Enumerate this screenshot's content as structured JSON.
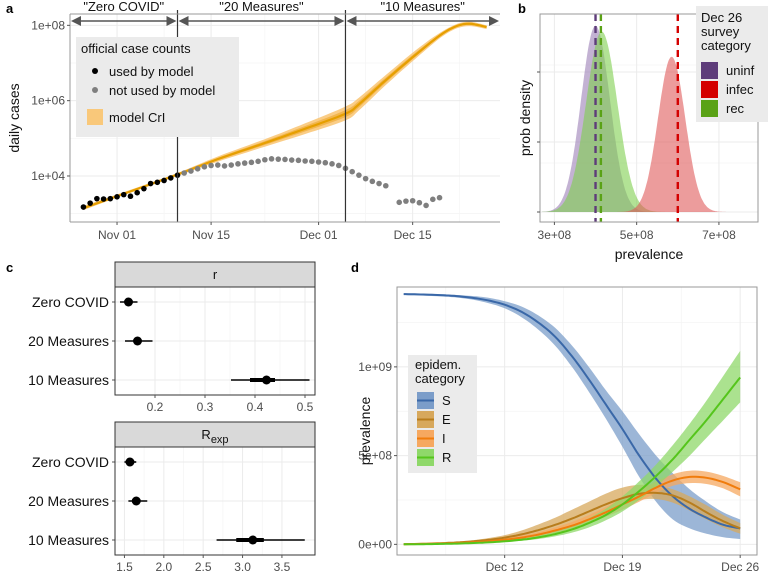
{
  "panels": {
    "a": {
      "label": "a"
    },
    "b": {
      "label": "b"
    },
    "c": {
      "label": "c"
    },
    "d": {
      "label": "d"
    }
  },
  "chart_data": [
    {
      "id": "a",
      "type": "line",
      "title": "",
      "xlabel": "",
      "ylabel": "daily cases",
      "yscale": "log10",
      "ylim": [
        600,
        200000000
      ],
      "ytick_labels": [
        "1e+04",
        "1e+06",
        "1e+08"
      ],
      "ytick_values": [
        10000,
        1000000,
        100000000
      ],
      "xtick_labels": [
        "Nov 01",
        "Nov 15",
        "Dec 01",
        "Dec 15"
      ],
      "xtick_days": [
        5,
        19,
        35,
        49
      ],
      "x_unit": "days since Oct 27",
      "xlim_days": [
        -2,
        62
      ],
      "phases": [
        {
          "label": "\"Zero COVID\"",
          "start_day": -2,
          "end_day": 14
        },
        {
          "label": "\"20 Measures\"",
          "start_day": 14,
          "end_day": 39
        },
        {
          "label": "\"10 Measures\"",
          "start_day": 39,
          "end_day": 62
        }
      ],
      "phase_boundaries_days": [
        14,
        39
      ],
      "legend": {
        "title": "official case counts",
        "items": [
          {
            "label": "used by model",
            "color": "#000000"
          },
          {
            "label": "not used by model",
            "color": "#7f7f7f"
          },
          {
            "label": "model CrI",
            "color": "#f9c87a"
          }
        ],
        "position": "top-left"
      },
      "series": [
        {
          "name": "used by model",
          "color": "#000000",
          "x": [
            0,
            1,
            2,
            3,
            4,
            5,
            6,
            7,
            8,
            9,
            10,
            11,
            12,
            13,
            14
          ],
          "y": [
            1500,
            1900,
            2500,
            2450,
            2500,
            2800,
            3200,
            2900,
            3600,
            4600,
            6300,
            6800,
            7600,
            8900,
            10500
          ]
        },
        {
          "name": "not used by model",
          "color": "#7f7f7f",
          "x": [
            15,
            16,
            17,
            18,
            19,
            20,
            21,
            22,
            23,
            24,
            25,
            26,
            27,
            28,
            29,
            30,
            31,
            32,
            33,
            34,
            35,
            36,
            37,
            38,
            39,
            40,
            41,
            42,
            43,
            44,
            45,
            47,
            48,
            49,
            50,
            51,
            52,
            53
          ],
          "y": [
            12000,
            13500,
            15500,
            17500,
            19000,
            19500,
            18500,
            19500,
            21000,
            22000,
            23000,
            24500,
            27000,
            28500,
            28000,
            27500,
            26500,
            26000,
            25000,
            24500,
            23500,
            22500,
            21000,
            19000,
            16000,
            13000,
            10500,
            8500,
            7200,
            6300,
            5500,
            2000,
            2150,
            2200,
            1950,
            1650,
            2400,
            2650
          ]
        },
        {
          "name": "model median",
          "color": "#e69f00",
          "x": [
            0,
            7,
            14,
            20,
            27,
            33,
            39,
            41,
            45,
            50,
            54,
            57,
            60
          ],
          "y": [
            1400,
            3900,
            11000,
            28000,
            75000,
            180000,
            450000,
            800000,
            3500000,
            20000000,
            70000000,
            110000000,
            90000000
          ]
        }
      ],
      "band": {
        "name": "model CrI",
        "color": "#f9c87a",
        "x": [
          0,
          7,
          14,
          20,
          27,
          33,
          39,
          41,
          45,
          50,
          54,
          57,
          60
        ],
        "lower": [
          1250,
          3600,
          10000,
          24000,
          60000,
          130000,
          300000,
          550000,
          2600000,
          16000000,
          60000000,
          95000000,
          80000000
        ],
        "upper": [
          1600,
          4300,
          12000,
          33000,
          95000,
          250000,
          700000,
          1200000,
          4800000,
          26000000,
          80000000,
          125000000,
          100000000
        ]
      }
    },
    {
      "id": "b",
      "type": "area",
      "title": "",
      "xlabel": "prevalence",
      "ylabel": "prob density",
      "xlim": [
        265000000.0,
        795000000.0
      ],
      "xtick_labels": [
        "3e+08",
        "5e+08",
        "7e+08"
      ],
      "xtick_values": [
        300000000.0,
        500000000.0,
        700000000.0
      ],
      "legend": {
        "title": "Dec 26\nsurvey\ncategory",
        "items": [
          {
            "label": "uninf",
            "color": "#5e3c7a"
          },
          {
            "label": "infec",
            "color": "#d40000"
          },
          {
            "label": "rec",
            "color": "#5aa216"
          }
        ],
        "position": "top-right"
      },
      "series": [
        {
          "name": "uninf",
          "color": "#9b7fb6",
          "mean": 400000000.0,
          "sd": 35000000.0,
          "peak_rel": 0.96,
          "survey_value": 400000000.0,
          "line_color": "#5e3c7a"
        },
        {
          "name": "rec",
          "color": "#7fcf4f",
          "mean": 415000000.0,
          "sd": 38000000.0,
          "peak_rel": 0.93,
          "survey_value": 413000000.0,
          "line_color": "#5aa216"
        },
        {
          "name": "infec",
          "color": "#e05a5a",
          "mean": 585000000.0,
          "sd": 33000000.0,
          "peak_rel": 0.8,
          "survey_value": 600000000.0,
          "line_color": "#d40000"
        }
      ]
    },
    {
      "id": "c-r",
      "type": "scatter",
      "facet_title": "r",
      "xlim": [
        0.12,
        0.52
      ],
      "xtick_labels": [
        "0.2",
        "0.3",
        "0.4",
        "0.5"
      ],
      "xtick_values": [
        0.2,
        0.3,
        0.4,
        0.5
      ],
      "categories": [
        "Zero COVID",
        "20 Measures",
        "10 Measures"
      ],
      "point": [
        0.147,
        0.165,
        0.423
      ],
      "inner": [
        [
          0.14,
          0.154
        ],
        [
          0.158,
          0.172
        ],
        [
          0.39,
          0.44
        ]
      ],
      "outer": [
        [
          0.13,
          0.165
        ],
        [
          0.14,
          0.195
        ],
        [
          0.352,
          0.509
        ]
      ]
    },
    {
      "id": "c-rexp",
      "type": "scatter",
      "facet_title": "R",
      "facet_title_sub": "exp",
      "xlim": [
        1.38,
        3.92
      ],
      "xtick_labels": [
        "1.5",
        "2.0",
        "2.5",
        "3.0",
        "3.5"
      ],
      "xtick_values": [
        1.5,
        2.0,
        2.5,
        3.0,
        3.5
      ],
      "categories": [
        "Zero COVID",
        "20 Measures",
        "10 Measures"
      ],
      "point": [
        1.57,
        1.65,
        3.13
      ],
      "inner": [
        [
          1.53,
          1.61
        ],
        [
          1.6,
          1.7
        ],
        [
          2.92,
          3.27
        ]
      ],
      "outer": [
        [
          1.5,
          1.65
        ],
        [
          1.55,
          1.79
        ],
        [
          2.67,
          3.79
        ]
      ]
    },
    {
      "id": "d",
      "type": "line",
      "title": "",
      "xlabel": "",
      "ylabel": "prevalence",
      "xtick_labels": [
        "Dec 12",
        "Dec 19",
        "Dec 26"
      ],
      "xtick_days": [
        12,
        19,
        26
      ],
      "xlim_days": [
        5.6,
        27
      ],
      "ylim": [
        -60000000.0,
        1450000000.0
      ],
      "ytick_labels": [
        "0e+00",
        "5e+08",
        "1e+09"
      ],
      "ytick_values": [
        0,
        500000000.0,
        1000000000.0
      ],
      "legend": {
        "title": "epidem.\ncategory",
        "items": [
          {
            "label": "S",
            "color": "#3a68a8",
            "fill": "#7b9dc9"
          },
          {
            "label": "E",
            "color": "#b87d1c",
            "fill": "#d7a85c"
          },
          {
            "label": "I",
            "color": "#f07c0c",
            "fill": "#f6a860"
          },
          {
            "label": "R",
            "color": "#55c51c",
            "fill": "#8fd86a"
          }
        ],
        "position": "left"
      },
      "x_days": [
        6,
        7,
        8,
        9,
        10,
        11,
        12,
        13,
        14,
        15,
        16,
        17,
        18,
        19,
        20,
        21,
        22,
        23,
        24,
        25,
        26
      ],
      "series": [
        {
          "name": "S",
          "color": "#3a68a8",
          "fill": "#7b9dc9",
          "median": [
            1410000000.0,
            1408000000.0,
            1405000000.0,
            1400000000.0,
            1390000000.0,
            1375000000.0,
            1350000000.0,
            1310000000.0,
            1250000000.0,
            1170000000.0,
            1060000000.0,
            930000000.0,
            790000000.0,
            650000000.0,
            500000000.0,
            370000000.0,
            270000000.0,
            200000000.0,
            150000000.0,
            110000000.0,
            90000000.0
          ],
          "lower": [
            1405000000.0,
            1402000000.0,
            1398000000.0,
            1392000000.0,
            1380000000.0,
            1360000000.0,
            1330000000.0,
            1280000000.0,
            1210000000.0,
            1120000000.0,
            1000000000.0,
            860000000.0,
            710000000.0,
            550000000.0,
            380000000.0,
            240000000.0,
            140000000.0,
            90000000.0,
            60000000.0,
            40000000.0,
            30000000.0
          ],
          "upper": [
            1415000000.0,
            1413000000.0,
            1410000000.0,
            1406000000.0,
            1400000000.0,
            1390000000.0,
            1370000000.0,
            1340000000.0,
            1290000000.0,
            1220000000.0,
            1120000000.0,
            1000000000.0,
            870000000.0,
            750000000.0,
            620000000.0,
            500000000.0,
            400000000.0,
            310000000.0,
            240000000.0,
            180000000.0,
            140000000.0
          ]
        },
        {
          "name": "E",
          "color": "#b87d1c",
          "fill": "#d7a85c",
          "median": [
            1000000.0,
            3000000.0,
            6000000.0,
            10000000.0,
            16000000.0,
            25000000.0,
            38000000.0,
            56000000.0,
            80000000.0,
            110000000.0,
            145000000.0,
            185000000.0,
            225000000.0,
            260000000.0,
            285000000.0,
            290000000.0,
            275000000.0,
            235000000.0,
            180000000.0,
            130000000.0,
            90000000.0
          ],
          "lower": [
            500000.0,
            2000000.0,
            4000000.0,
            7000000.0,
            11000000.0,
            17000000.0,
            26000000.0,
            38000000.0,
            55000000.0,
            80000000.0,
            110000000.0,
            145000000.0,
            185000000.0,
            225000000.0,
            250000000.0,
            255000000.0,
            235000000.0,
            190000000.0,
            140000000.0,
            95000000.0,
            60000000.0
          ],
          "upper": [
            2000000.0,
            4000000.0,
            9000000.0,
            14000000.0,
            22000000.0,
            35000000.0,
            52000000.0,
            78000000.0,
            112000000.0,
            150000000.0,
            195000000.0,
            240000000.0,
            285000000.0,
            320000000.0,
            335000000.0,
            330000000.0,
            310000000.0,
            270000000.0,
            220000000.0,
            165000000.0,
            120000000.0
          ]
        },
        {
          "name": "I",
          "color": "#f07c0c",
          "fill": "#f6a860",
          "median": [
            1000000.0,
            2000000.0,
            4000000.0,
            7000000.0,
            11000000.0,
            17000000.0,
            26000000.0,
            38000000.0,
            55000000.0,
            78000000.0,
            105000000.0,
            140000000.0,
            180000000.0,
            225000000.0,
            270000000.0,
            320000000.0,
            360000000.0,
            380000000.0,
            375000000.0,
            350000000.0,
            310000000.0
          ],
          "lower": [
            500000.0,
            1500000.0,
            3000000.0,
            5000000.0,
            8000000.0,
            13000000.0,
            20000000.0,
            30000000.0,
            44000000.0,
            63000000.0,
            87000000.0,
            118000000.0,
            155000000.0,
            195000000.0,
            240000000.0,
            290000000.0,
            330000000.0,
            345000000.0,
            340000000.0,
            315000000.0,
            270000000.0
          ],
          "upper": [
            1500000.0,
            3000000.0,
            5000000.0,
            9000000.0,
            14000000.0,
            22000000.0,
            33000000.0,
            48000000.0,
            68000000.0,
            95000000.0,
            126000000.0,
            165000000.0,
            210000000.0,
            260000000.0,
            305000000.0,
            355000000.0,
            395000000.0,
            415000000.0,
            410000000.0,
            385000000.0,
            350000000.0
          ]
        },
        {
          "name": "R",
          "color": "#55c51c",
          "fill": "#8fd86a",
          "median": [
            500000.0,
            1000000.0,
            2000000.0,
            4000000.0,
            7000000.0,
            11000000.0,
            17000000.0,
            26000000.0,
            39000000.0,
            58000000.0,
            84000000.0,
            120000000.0,
            165000000.0,
            225000000.0,
            300000000.0,
            385000000.0,
            480000000.0,
            590000000.0,
            700000000.0,
            820000000.0,
            940000000.0
          ],
          "lower": [
            300000.0,
            700000.0,
            1500000.0,
            3000000.0,
            5000000.0,
            8000000.0,
            13000000.0,
            20000000.0,
            30000000.0,
            45000000.0,
            66000000.0,
            95000000.0,
            135000000.0,
            185000000.0,
            250000000.0,
            325000000.0,
            410000000.0,
            500000000.0,
            600000000.0,
            700000000.0,
            800000000.0
          ],
          "upper": [
            800000.0,
            1500000.0,
            3000000.0,
            5000000.0,
            9000000.0,
            14000000.0,
            22000000.0,
            33000000.0,
            50000000.0,
            73000000.0,
            105000000.0,
            148000000.0,
            200000000.0,
            270000000.0,
            355000000.0,
            450000000.0,
            560000000.0,
            680000000.0,
            810000000.0,
            950000000.0,
            1090000000.0
          ]
        }
      ]
    }
  ]
}
